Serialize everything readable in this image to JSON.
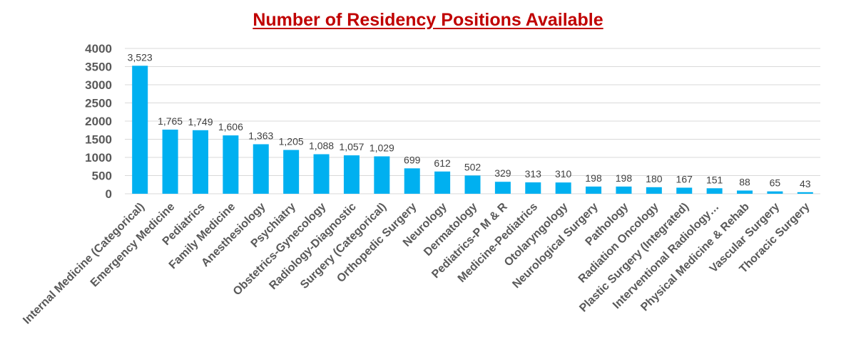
{
  "chart_data": {
    "type": "bar",
    "title": "Number of Residency Positions Available",
    "xlabel": "",
    "ylabel": "",
    "ylim": [
      0,
      4000
    ],
    "yticks": [
      "0",
      "500",
      "1000",
      "1500",
      "2000",
      "2500",
      "3000",
      "3500",
      "4000"
    ],
    "grid": true,
    "bar_color": "#00b0f0",
    "title_color": "#c00000",
    "categories": [
      "Internal Medicine (Categorical)",
      "Emergency Medicine",
      "Pediatrics",
      "Family Medicine",
      "Anesthesiology",
      "Psychiatry",
      "Obstetrics-Gynecology",
      "Radiology-Diagnostic",
      "Surgery (Categorical)",
      "Orthopedic Surgery",
      "Neurology",
      "Dermatology",
      "Pediatrics-P M & R",
      "Medicine-Pediatrics",
      "Otolaryngology",
      "Neurological Surgery",
      "Pathology",
      "Radiation Oncology",
      "Plastic Surgery (Integrated)",
      "Interventional Radiology…",
      "Physical Medicine & Rehab",
      "Vascular Surgery",
      "Thoracic Surgery"
    ],
    "values": [
      3523,
      1765,
      1749,
      1606,
      1363,
      1205,
      1088,
      1057,
      1029,
      699,
      612,
      502,
      329,
      313,
      310,
      198,
      198,
      180,
      167,
      151,
      88,
      65,
      43
    ],
    "data_labels": [
      "3,523",
      "1,765",
      "1,749",
      "1,606",
      "1,363",
      "1,205",
      "1,088",
      "1,057",
      "1,029",
      "699",
      "612",
      "502",
      "329",
      "313",
      "310",
      "198",
      "198",
      "180",
      "167",
      "151",
      "88",
      "65",
      "43"
    ]
  }
}
